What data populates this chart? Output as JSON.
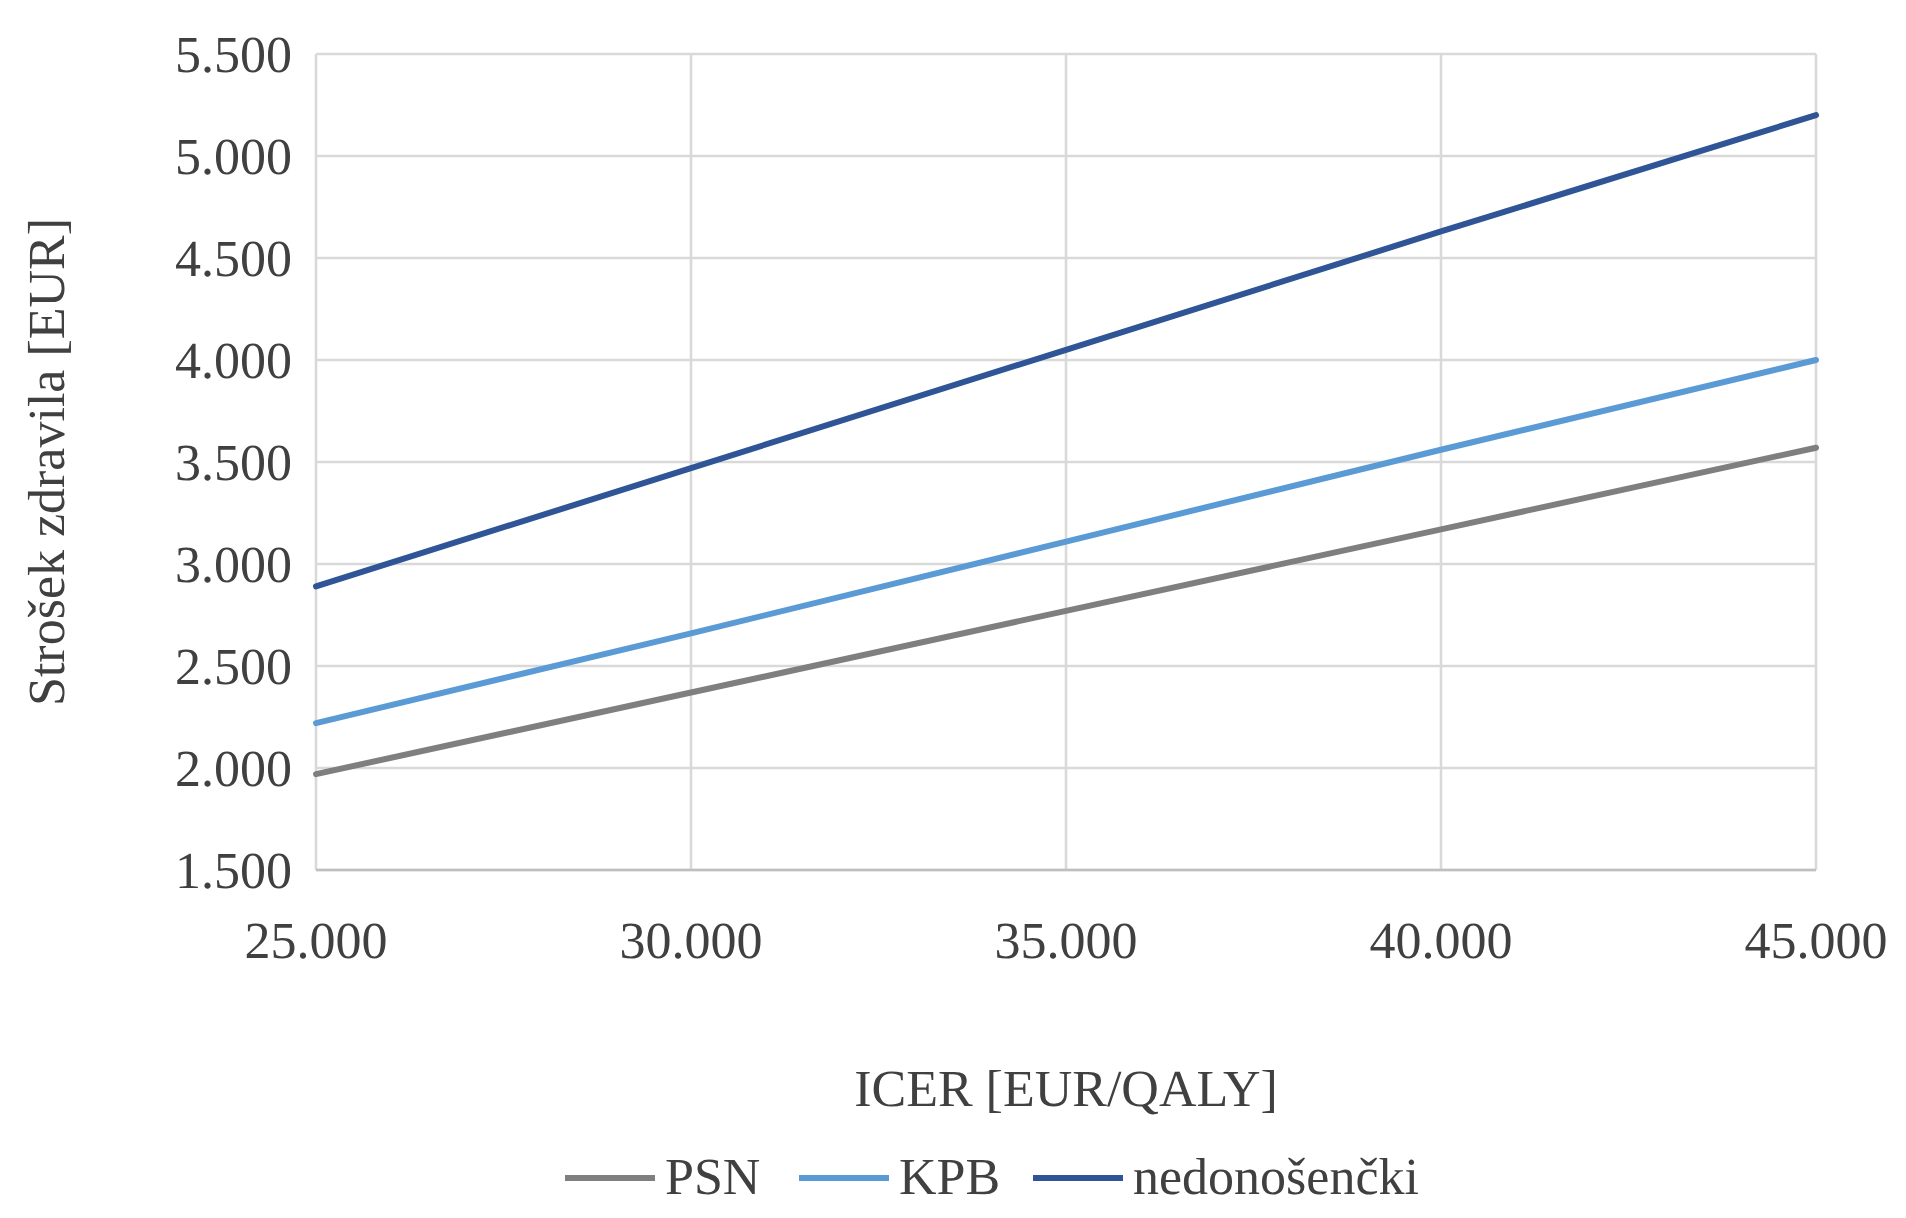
{
  "chart_data": {
    "type": "line",
    "xlabel": "ICER [EUR/QALY]",
    "ylabel": "Strošek zdravila [EUR]",
    "x": [
      25000,
      30000,
      35000,
      40000,
      45000
    ],
    "series": [
      {
        "name": "PSN",
        "color": "#7f7f7f",
        "values": [
          1970,
          2370,
          2770,
          3170,
          3570
        ]
      },
      {
        "name": "KPB",
        "color": "#5b9bd5",
        "values": [
          2220,
          2660,
          3110,
          3560,
          4000
        ]
      },
      {
        "name": "nedonošenčki",
        "color": "#2f5597",
        "values": [
          2890,
          3470,
          4050,
          4630,
          5200
        ]
      }
    ],
    "xlim": [
      25000,
      45000
    ],
    "xticks": [
      {
        "value": 25000,
        "label": "25.000"
      },
      {
        "value": 30000,
        "label": "30.000"
      },
      {
        "value": 35000,
        "label": "35.000"
      },
      {
        "value": 40000,
        "label": "40.000"
      },
      {
        "value": 45000,
        "label": "45.000"
      }
    ],
    "ylim": [
      1500,
      5500
    ],
    "yticks": [
      {
        "value": 1500,
        "label": "1.500"
      },
      {
        "value": 2000,
        "label": "2.000"
      },
      {
        "value": 2500,
        "label": "2.500"
      },
      {
        "value": 3000,
        "label": "3.000"
      },
      {
        "value": 3500,
        "label": "3.500"
      },
      {
        "value": 4000,
        "label": "4.000"
      },
      {
        "value": 4500,
        "label": "4.500"
      },
      {
        "value": 5000,
        "label": "5.000"
      },
      {
        "value": 5500,
        "label": "5.500"
      }
    ],
    "grid": true,
    "legend": "bottom",
    "marker": "none",
    "line_style": "solid"
  }
}
